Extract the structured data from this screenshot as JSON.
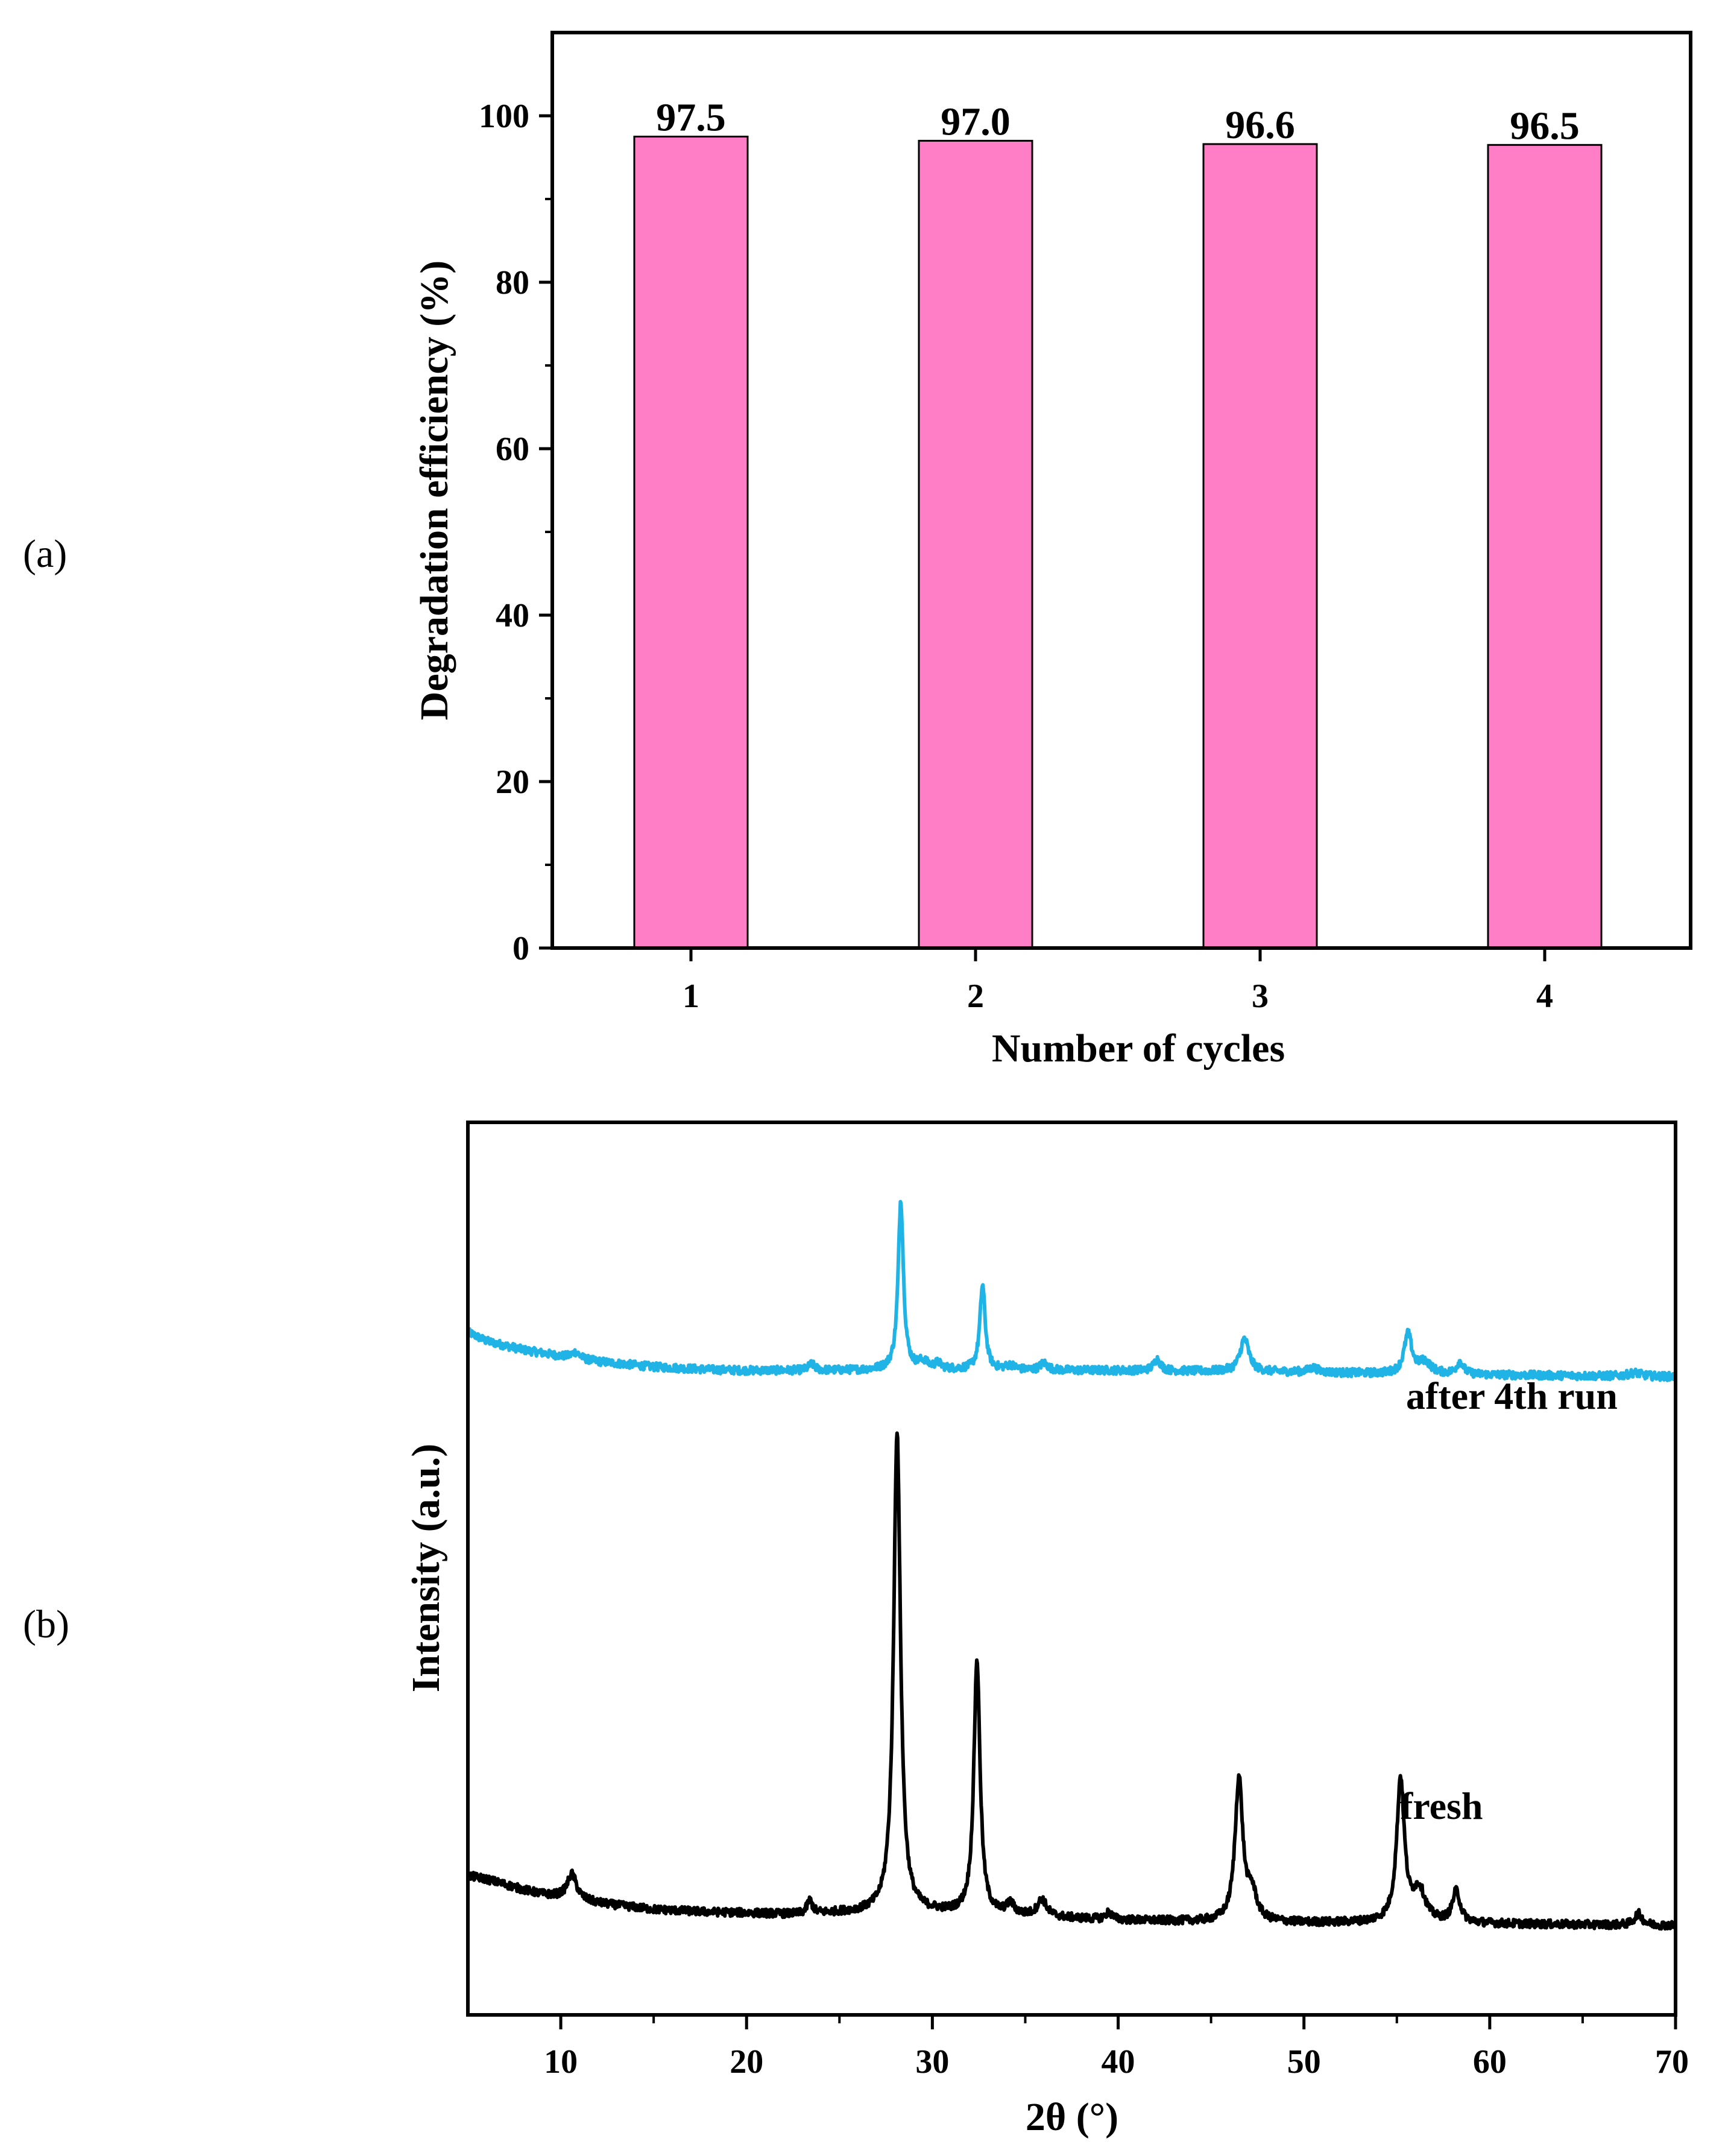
{
  "panels": {
    "a_label": "(a)",
    "b_label": "(b)"
  },
  "chart_data": [
    {
      "type": "bar",
      "panel": "a",
      "title": "",
      "xlabel": "Number of cycles",
      "ylabel": "Degradation efficiency (%)",
      "categories": [
        "1",
        "2",
        "3",
        "4"
      ],
      "values": [
        97.5,
        97.0,
        96.6,
        96.5
      ],
      "value_labels": [
        "97.5",
        "97.0",
        "96.6",
        "96.5"
      ],
      "ylim": [
        0,
        110
      ],
      "yticks": [
        0,
        20,
        40,
        60,
        80,
        100
      ],
      "ytick_labels": [
        "0",
        "20",
        "40",
        "60",
        "80",
        "100"
      ],
      "bar_color": "#ff7ec6",
      "grid": false
    },
    {
      "type": "line",
      "panel": "b",
      "title": "",
      "xlabel": "2θ (°)",
      "ylabel": "Intensity (a.u.)",
      "xlim": [
        5,
        70
      ],
      "xticks": [
        10,
        20,
        30,
        40,
        50,
        60,
        70
      ],
      "xtick_labels": [
        "10",
        "20",
        "30",
        "40",
        "50",
        "60",
        "70"
      ],
      "ylim": [
        0,
        100
      ],
      "grid": false,
      "series": [
        {
          "name": "after 4th run",
          "color": "#1fb3e6",
          "baseline": [
            [
              5,
              76.5
            ],
            [
              6,
              75.5
            ],
            [
              8,
              74.5
            ],
            [
              10,
              73.8
            ],
            [
              12,
              73.2
            ],
            [
              15,
              72.6
            ],
            [
              18,
              72.3
            ],
            [
              20,
              72.2
            ],
            [
              25,
              72.2
            ],
            [
              30,
              72.3
            ],
            [
              35,
              72.2
            ],
            [
              40,
              72.2
            ],
            [
              45,
              72.1
            ],
            [
              50,
              72.0
            ],
            [
              55,
              71.8
            ],
            [
              60,
              71.7
            ],
            [
              65,
              71.6
            ],
            [
              70,
              71.5
            ]
          ],
          "peaks": [
            [
              10.8,
              0.7,
              0.25
            ],
            [
              23.5,
              0.7,
              0.2
            ],
            [
              28.3,
              19.0,
              0.17
            ],
            [
              29.5,
              0.8,
              0.3
            ],
            [
              30.3,
              0.6,
              0.2
            ],
            [
              32.7,
              9.5,
              0.17
            ],
            [
              34.2,
              0.5,
              0.3
            ],
            [
              36.0,
              0.8,
              0.25
            ],
            [
              42.1,
              1.3,
              0.22
            ],
            [
              46.8,
              3.7,
              0.28
            ],
            [
              50.5,
              0.5,
              0.3
            ],
            [
              55.6,
              4.4,
              0.25
            ],
            [
              56.5,
              1.3,
              0.4
            ],
            [
              58.4,
              1.4,
              0.22
            ],
            [
              67.8,
              0.4,
              0.4
            ]
          ]
        },
        {
          "name": "fresh",
          "color": "#000000",
          "baseline": [
            [
              5,
              15.6
            ],
            [
              6,
              15.2
            ],
            [
              7,
              14.6
            ],
            [
              8,
              14.0
            ],
            [
              9,
              13.5
            ],
            [
              10,
              13.2
            ],
            [
              12,
              12.5
            ],
            [
              15,
              11.8
            ],
            [
              18,
              11.5
            ],
            [
              20,
              11.4
            ],
            [
              23,
              11.2
            ],
            [
              25,
              11.4
            ],
            [
              30,
              11.4
            ],
            [
              35,
              11.0
            ],
            [
              40,
              10.6
            ],
            [
              45,
              10.4
            ],
            [
              50,
              10.3
            ],
            [
              55,
              10.3
            ],
            [
              60,
              10.2
            ],
            [
              65,
              10.1
            ],
            [
              70,
              10.0
            ]
          ],
          "peaks": [
            [
              10.6,
              2.8,
              0.3
            ],
            [
              23.4,
              1.5,
              0.18
            ],
            [
              28.1,
              54.0,
              0.22
            ],
            [
              32.4,
              28.5,
              0.2
            ],
            [
              34.2,
              1.2,
              0.25
            ],
            [
              35.9,
              1.9,
              0.3
            ],
            [
              39.5,
              0.8,
              0.2
            ],
            [
              46.5,
              16.0,
              0.25
            ],
            [
              47.2,
              3.0,
              0.3
            ],
            [
              55.2,
              16.0,
              0.25
            ],
            [
              56.2,
              3.5,
              0.4
            ],
            [
              58.2,
              3.5,
              0.25
            ],
            [
              68.0,
              1.3,
              0.25
            ]
          ]
        }
      ]
    }
  ]
}
